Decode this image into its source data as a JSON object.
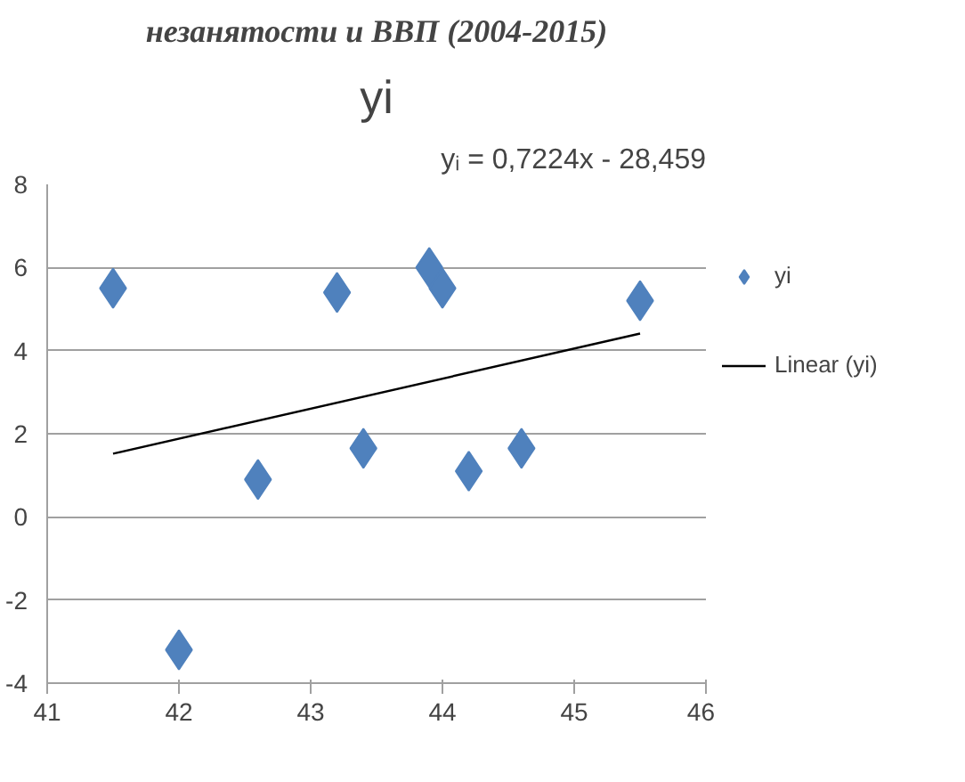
{
  "chart_data": {
    "type": "scatter",
    "title": "незанятости и ВВП (2004-2015)",
    "subtitle": "yi",
    "annotations": [
      "yᵢ = 0,7224x - 28,459"
    ],
    "xlim": [
      41,
      46
    ],
    "xticks": [
      41,
      42,
      43,
      44,
      45,
      46
    ],
    "ylim": [
      -4,
      8
    ],
    "yticks": [
      -4,
      -2,
      0,
      2,
      4,
      6,
      8
    ],
    "grid": "y",
    "legend": "right",
    "series": [
      {
        "name": "yi",
        "marker": "diamond",
        "color": "#4f81bd",
        "x": [
          41.5,
          42,
          42.6,
          43.2,
          43.4,
          43.9,
          44.0,
          44.2,
          44.6,
          45.5
        ],
        "values": [
          5.5,
          -3.2,
          0.9,
          5.4,
          1.65,
          6.0,
          5.5,
          1.1,
          1.65,
          5.2
        ]
      },
      {
        "name": "Linear (yi)",
        "type": "line",
        "color": "#000000",
        "x": [
          41.5,
          45.5
        ],
        "values": [
          1.52,
          4.41
        ]
      }
    ]
  }
}
